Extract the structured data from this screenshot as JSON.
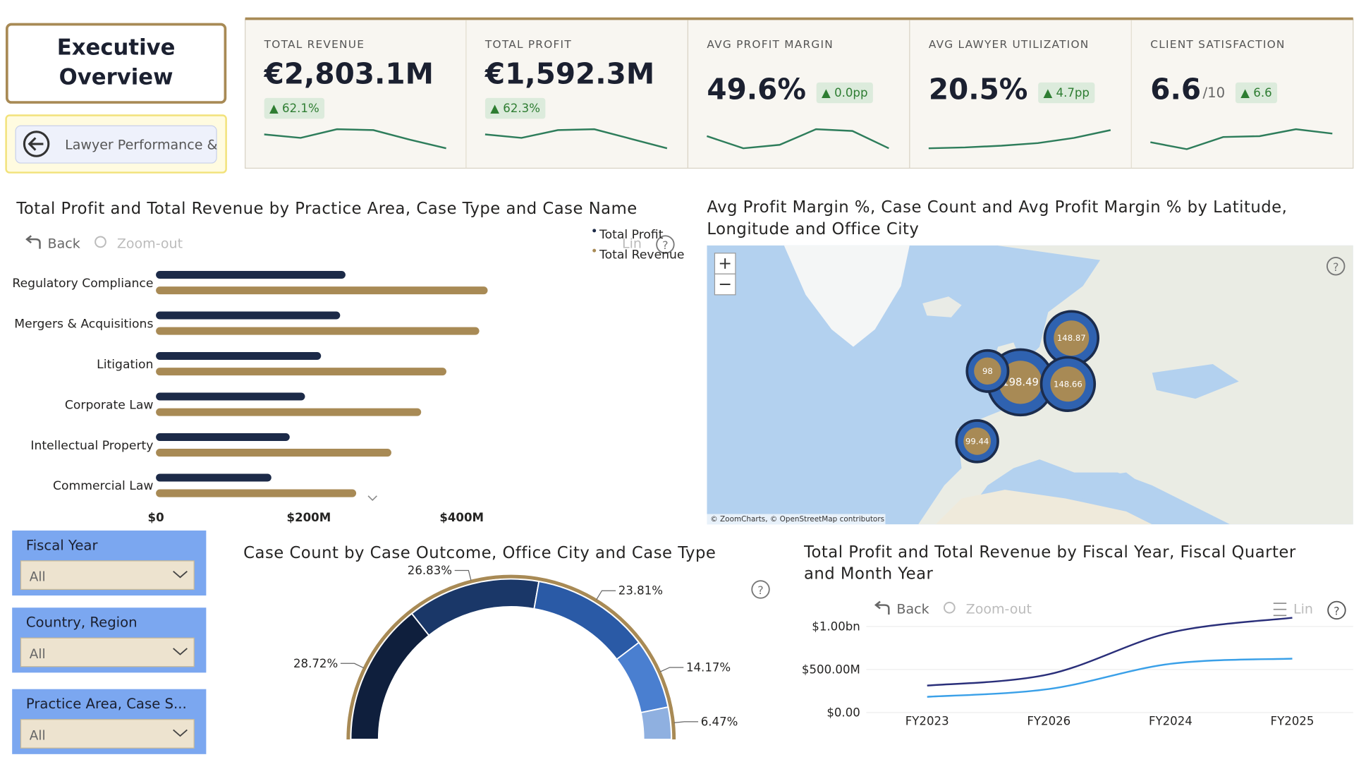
{
  "header": {
    "title": "Executive Overview",
    "nav_button": "Lawyer Performance &"
  },
  "kpis": [
    {
      "label": "TOTAL REVENUE",
      "value": "€2,803.1M",
      "delta": "▲ 62.1%",
      "trend": [
        25,
        21,
        31,
        30,
        19,
        9
      ]
    },
    {
      "label": "TOTAL PROFIT",
      "value": "€1,592.3M",
      "delta": "▲ 62.3%",
      "trend": [
        25,
        21,
        30,
        31,
        20,
        9
      ]
    },
    {
      "label": "AVG PROFIT MARGIN",
      "value": "49.6%",
      "delta": "▲ 0.0pp",
      "trend": [
        23,
        9,
        13,
        31,
        29,
        9
      ]
    },
    {
      "label": "AVG LAWYER UTILIZATION",
      "value": "20.5%",
      "delta": "▲ 4.7pp",
      "trend": [
        9,
        10,
        12,
        15,
        21,
        30
      ]
    },
    {
      "label": "CLIENT SATISFACTION",
      "value": "6.6",
      "suffix": "/10",
      "delta": "▲ 6.6",
      "trend": [
        16,
        8,
        22,
        23,
        31,
        26
      ]
    }
  ],
  "slicers": [
    {
      "label": "Fiscal Year",
      "value": "All"
    },
    {
      "label": "Country, Region",
      "value": "All"
    },
    {
      "label": "Practice Area, Case S...",
      "value": "All"
    }
  ],
  "chart_data": [
    {
      "type": "hbar",
      "title": "Total Profit and Total Revenue by Practice Area, Case Type and Case Name",
      "toolbar": [
        "Back",
        "Zoom-out",
        "Lin"
      ],
      "categories": [
        "Regulatory Compliance",
        "Mergers & Acquisitions",
        "Litigation",
        "Corporate Law",
        "Intellectual Property",
        "Commercial Law"
      ],
      "series": [
        {
          "name": "Total Profit",
          "color": "#1c2a48",
          "values": [
            248,
            241,
            216,
            195,
            175,
            151
          ]
        },
        {
          "name": "Total Revenue",
          "color": "#a88a55",
          "values": [
            434,
            423,
            380,
            347,
            308,
            262
          ]
        }
      ],
      "xlim": [
        0,
        680
      ],
      "xticks": [
        {
          "value": 0,
          "label": "$0"
        },
        {
          "value": 200,
          "label": "$200M"
        },
        {
          "value": 400,
          "label": "$400M"
        }
      ],
      "legend": "top-right"
    },
    {
      "type": "map",
      "title": "Avg Profit Margin %, Case Count and Avg Profit Margin % by Latitude, Longitude and Office City",
      "attribution": "© ZoomCharts, © OpenStreetMap contributors",
      "points": [
        {
          "lat": 50.0,
          "lon": -0.25,
          "value": 198.49
        },
        {
          "lat": 55.1,
          "lon": 7.1,
          "value": 148.87
        },
        {
          "lat": 49.8,
          "lon": 6.6,
          "value": 148.66
        },
        {
          "lat": 51.3,
          "lon": -5.0,
          "value": 98
        },
        {
          "lat": 43.2,
          "lon": -6.5,
          "value": 99.44
        }
      ]
    },
    {
      "type": "semi-donut",
      "title": "Case Count by Case Outcome, Office City and Case Type",
      "values": [
        28.72,
        26.83,
        23.81,
        14.17,
        6.47
      ],
      "value_labels": [
        "28.72%",
        "26.83%",
        "23.81%",
        "14.17%",
        "6.47%"
      ],
      "colors": [
        "#0f1f3d",
        "#1a3768",
        "#2a5aa6",
        "#4a7fd0",
        "#8fb0e0"
      ]
    },
    {
      "type": "line",
      "title": "Total Profit and Total Revenue by Fiscal Year, Fiscal Quarter and Month Year",
      "toolbar": [
        "Back",
        "Zoom-out",
        "Lin"
      ],
      "categories": [
        "FY2023",
        "FY2026",
        "FY2024",
        "FY2025"
      ],
      "series": [
        {
          "color": "#2a2f7a",
          "values": [
            313,
            444,
            929,
            1101
          ]
        },
        {
          "color": "#3aa0e8",
          "values": [
            182,
            273,
            566,
            626
          ]
        }
      ],
      "ylim": [
        0,
        1150
      ],
      "yticks": [
        {
          "value": 0,
          "label": "$0.00"
        },
        {
          "value": 500,
          "label": "$500.00M"
        },
        {
          "value": 1000,
          "label": "$1.00bn"
        }
      ],
      "grid": true
    }
  ]
}
